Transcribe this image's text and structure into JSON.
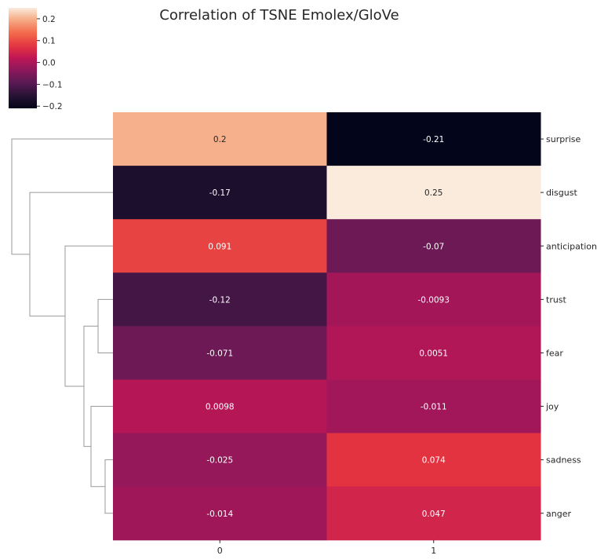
{
  "chart_data": {
    "type": "heatmap",
    "title": "Correlation of TSNE Emolex/GloVe",
    "columns": [
      "0",
      "1"
    ],
    "rows": [
      "surprise",
      "disgust",
      "anticipation",
      "trust",
      "fear",
      "joy",
      "sadness",
      "anger"
    ],
    "values": [
      [
        0.2,
        -0.21
      ],
      [
        -0.17,
        0.25
      ],
      [
        0.091,
        -0.07
      ],
      [
        -0.12,
        -0.0093
      ],
      [
        -0.071,
        0.0051
      ],
      [
        0.0098,
        -0.011
      ],
      [
        -0.025,
        0.074
      ],
      [
        -0.014,
        0.047
      ]
    ],
    "cell_labels": [
      [
        "0.2",
        "-0.21"
      ],
      [
        "-0.17",
        "0.25"
      ],
      [
        "0.091",
        "-0.07"
      ],
      [
        "-0.12",
        "-0.0093"
      ],
      [
        "-0.071",
        "0.0051"
      ],
      [
        "0.0098",
        "-0.011"
      ],
      [
        "-0.025",
        "0.074"
      ],
      [
        "-0.014",
        "0.047"
      ]
    ],
    "colorbar": {
      "range": [
        -0.21,
        0.25
      ],
      "ticks": [
        0.2,
        0.1,
        0.0,
        -0.1,
        -0.2
      ],
      "tick_labels": [
        "0.2",
        "0.1",
        "0.0",
        "−0.1",
        "−0.2"
      ],
      "colormap": "rocket"
    },
    "dendrogram": {
      "side": "left",
      "leaf_order": [
        "surprise",
        "disgust",
        "anticipation",
        "trust",
        "fear",
        "joy",
        "sadness",
        "anger"
      ],
      "merges": [
        {
          "a": "sadness",
          "b": "anger"
        },
        {
          "a": "trust",
          "b": "fear"
        },
        {
          "a": "joy",
          "b": "sadness+anger"
        },
        {
          "a": "trust+fear",
          "b": "joy+sadness+anger"
        },
        {
          "a": "anticipation",
          "b": "trust+fear+joy+sadness+anger"
        },
        {
          "a": "disgust",
          "b": "anticipation+trust+fear+joy+sadness+anger"
        },
        {
          "a": "surprise",
          "b": "disgust+anticipation+trust+fear+joy+sadness+anger"
        }
      ],
      "line_color": "#9a9a9a"
    }
  }
}
